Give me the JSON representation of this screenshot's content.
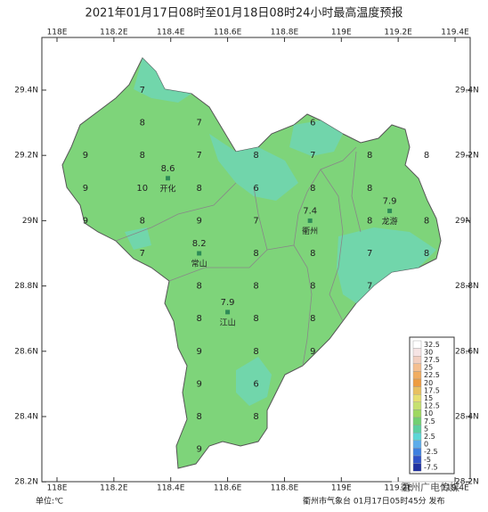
{
  "title": "2021年01月17日08时至01月18日08时24小时最高温度预报",
  "lon_ticks": [
    {
      "value": 118,
      "label": "118E"
    },
    {
      "value": 118.2,
      "label": "118.2E"
    },
    {
      "value": 118.4,
      "label": "118.4E"
    },
    {
      "value": 118.6,
      "label": "118.6E"
    },
    {
      "value": 118.8,
      "label": "118.8E"
    },
    {
      "value": 119,
      "label": "119E"
    },
    {
      "value": 119.2,
      "label": "119.2E"
    },
    {
      "value": 119.4,
      "label": "119.4E"
    }
  ],
  "lat_ticks": [
    {
      "value": 29.4,
      "label": "29.4N"
    },
    {
      "value": 29.2,
      "label": "29.2N"
    },
    {
      "value": 29,
      "label": "29N"
    },
    {
      "value": 28.8,
      "label": "28.8N"
    },
    {
      "value": 28.6,
      "label": "28.6N"
    },
    {
      "value": 28.4,
      "label": "28.4N"
    },
    {
      "value": 28.2,
      "label": "28.2N"
    }
  ],
  "grid_values": [
    {
      "lon": 118.3,
      "lat": 29.4,
      "value": 7
    },
    {
      "lon": 118.3,
      "lat": 29.3,
      "value": 8
    },
    {
      "lon": 118.5,
      "lat": 29.3,
      "value": 7
    },
    {
      "lon": 118.9,
      "lat": 29.3,
      "value": 6
    },
    {
      "lon": 118.1,
      "lat": 29.2,
      "value": 9
    },
    {
      "lon": 118.3,
      "lat": 29.2,
      "value": 8
    },
    {
      "lon": 118.5,
      "lat": 29.2,
      "value": 7
    },
    {
      "lon": 118.7,
      "lat": 29.2,
      "value": 8
    },
    {
      "lon": 118.9,
      "lat": 29.2,
      "value": 7
    },
    {
      "lon": 119.1,
      "lat": 29.2,
      "value": 8
    },
    {
      "lon": 119.3,
      "lat": 29.2,
      "value": 8
    },
    {
      "lon": 118.1,
      "lat": 29.1,
      "value": 9
    },
    {
      "lon": 118.3,
      "lat": 29.1,
      "value": 10
    },
    {
      "lon": 118.5,
      "lat": 29.1,
      "value": 8
    },
    {
      "lon": 118.7,
      "lat": 29.1,
      "value": 6
    },
    {
      "lon": 118.9,
      "lat": 29.1,
      "value": 8
    },
    {
      "lon": 119.1,
      "lat": 29.1,
      "value": 8
    },
    {
      "lon": 118.1,
      "lat": 29.0,
      "value": 9
    },
    {
      "lon": 118.3,
      "lat": 29.0,
      "value": 8
    },
    {
      "lon": 118.5,
      "lat": 29.0,
      "value": 9
    },
    {
      "lon": 118.7,
      "lat": 29.0,
      "value": 7
    },
    {
      "lon": 119.1,
      "lat": 29.0,
      "value": 8
    },
    {
      "lon": 119.3,
      "lat": 29.0,
      "value": 8
    },
    {
      "lon": 118.3,
      "lat": 28.9,
      "value": 7
    },
    {
      "lon": 118.7,
      "lat": 28.9,
      "value": 8
    },
    {
      "lon": 118.9,
      "lat": 28.9,
      "value": 8
    },
    {
      "lon": 119.1,
      "lat": 28.9,
      "value": 7
    },
    {
      "lon": 119.3,
      "lat": 28.9,
      "value": 8
    },
    {
      "lon": 118.5,
      "lat": 28.8,
      "value": 8
    },
    {
      "lon": 118.7,
      "lat": 28.8,
      "value": 8
    },
    {
      "lon": 118.9,
      "lat": 28.8,
      "value": 8
    },
    {
      "lon": 119.1,
      "lat": 28.8,
      "value": 7
    },
    {
      "lon": 118.5,
      "lat": 28.7,
      "value": 8
    },
    {
      "lon": 118.7,
      "lat": 28.7,
      "value": 8
    },
    {
      "lon": 118.9,
      "lat": 28.7,
      "value": 8
    },
    {
      "lon": 118.5,
      "lat": 28.6,
      "value": 9
    },
    {
      "lon": 118.7,
      "lat": 28.6,
      "value": 8
    },
    {
      "lon": 118.9,
      "lat": 28.6,
      "value": 9
    },
    {
      "lon": 118.5,
      "lat": 28.5,
      "value": 9
    },
    {
      "lon": 118.7,
      "lat": 28.5,
      "value": 6
    },
    {
      "lon": 118.5,
      "lat": 28.4,
      "value": 8
    },
    {
      "lon": 118.7,
      "lat": 28.4,
      "value": 8
    },
    {
      "lon": 118.5,
      "lat": 28.3,
      "value": 9
    }
  ],
  "cities": [
    {
      "name": "开化",
      "value": 8.6,
      "lon": 118.39,
      "lat": 29.13
    },
    {
      "name": "常山",
      "value": 8.2,
      "lon": 118.5,
      "lat": 28.9
    },
    {
      "name": "江山",
      "value": 7.9,
      "lon": 118.6,
      "lat": 28.72
    },
    {
      "name": "衢州",
      "value": 7.4,
      "lon": 118.89,
      "lat": 29.0
    },
    {
      "name": "龙游",
      "value": 7.9,
      "lon": 119.17,
      "lat": 29.03
    }
  ],
  "legend": {
    "levels": [
      32.5,
      30,
      27.5,
      25,
      22.5,
      20,
      17.5,
      15,
      12.5,
      10,
      7.5,
      5,
      2.5,
      0,
      -2.5,
      -5,
      -7.5
    ],
    "colors": [
      "#ffffff",
      "#f6e4e4",
      "#f2cfc0",
      "#f4bf90",
      "#f1ad62",
      "#ee9c40",
      "#e8c060",
      "#e6df70",
      "#c6e070",
      "#9ed860",
      "#72d072",
      "#5ccfa0",
      "#5cd6d6",
      "#5cacea",
      "#3f80e0",
      "#2f52c8",
      "#1f30a0"
    ]
  },
  "unit": "单位:℃",
  "issuer": "衢州市气象台 01月17日05时45分 发布",
  "watermark": "衢州广电传媒"
}
